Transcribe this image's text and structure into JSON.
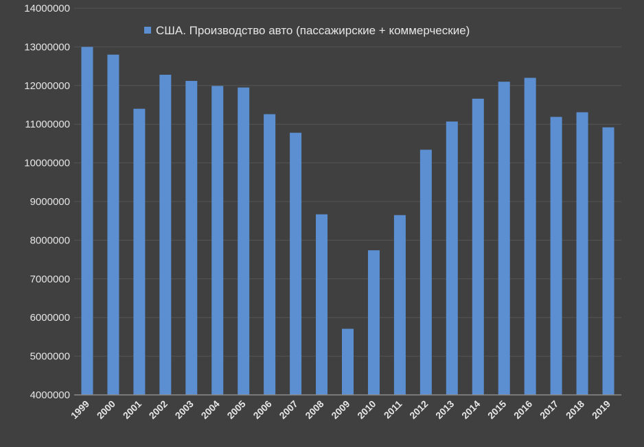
{
  "chart_data": {
    "type": "bar",
    "title": "",
    "xlabel": "",
    "ylabel": "",
    "legend": {
      "label": "США. Производство авто (пассажирские + коммерческие)",
      "placement": "top-center"
    },
    "categories": [
      "1999",
      "2000",
      "2001",
      "2002",
      "2003",
      "2004",
      "2005",
      "2006",
      "2007",
      "2008",
      "2009",
      "2010",
      "2011",
      "2012",
      "2013",
      "2014",
      "2015",
      "2016",
      "2017",
      "2018",
      "2019"
    ],
    "series": [
      {
        "name": "США. Производство авто (пассажирские + коммерческие)",
        "color": "#5b8fd1",
        "values": [
          13000000,
          12800000,
          11400000,
          12280000,
          12120000,
          11990000,
          11950000,
          11260000,
          10780000,
          8670000,
          5710000,
          7740000,
          8650000,
          10340000,
          11070000,
          11660000,
          12100000,
          12200000,
          11190000,
          11310000,
          10920000
        ]
      }
    ],
    "ylim": [
      4000000,
      14000000
    ],
    "yticks": [
      "4000000",
      "5000000",
      "6000000",
      "7000000",
      "8000000",
      "9000000",
      "10000000",
      "11000000",
      "12000000",
      "13000000",
      "14000000"
    ],
    "grid": true,
    "colors": {
      "background": "#404040",
      "bar": "#5b8fd1",
      "grid": "#555555",
      "axis": "#8a8a8a",
      "text": "#e6e6e6"
    }
  }
}
